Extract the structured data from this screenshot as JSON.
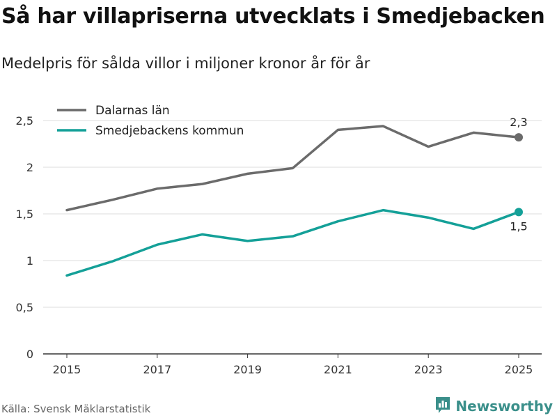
{
  "title": "Så har villapriserna utvecklats i Smedjebacken",
  "subtitle": "Medelpris för sålda villor i miljoner kronor år för år",
  "source": "Källa: Svensk Mäklarstatistik",
  "brand": {
    "name": "Newsworthy",
    "icon": "bar-chart-logo-icon",
    "color": "#3a8f8a"
  },
  "chart_data": {
    "type": "line",
    "title": "Så har villapriserna utvecklats i Smedjebacken",
    "subtitle": "Medelpris för sålda villor i miljoner kronor år för år",
    "xlabel": "",
    "ylabel": "",
    "x": [
      2015,
      2016,
      2017,
      2018,
      2019,
      2020,
      2021,
      2022,
      2023,
      2024,
      2025
    ],
    "xticks": [
      2015,
      2017,
      2019,
      2021,
      2023,
      2025
    ],
    "ylim": [
      0,
      2.5
    ],
    "yticks": [
      0,
      0.5,
      1,
      1.5,
      2,
      2.5
    ],
    "ytick_labels": [
      "0",
      "0,5",
      "1",
      "1,5",
      "2",
      "2,5"
    ],
    "grid": true,
    "legend_position": "top-left",
    "series": [
      {
        "name": "Dalarnas län",
        "color": "#6b6b6b",
        "values": [
          1.54,
          1.65,
          1.77,
          1.82,
          1.93,
          1.99,
          2.4,
          2.44,
          2.22,
          2.37,
          2.32
        ],
        "end_label": "2,3"
      },
      {
        "name": "Smedjebackens kommun",
        "color": "#14a098",
        "values": [
          0.84,
          0.99,
          1.17,
          1.28,
          1.21,
          1.26,
          1.42,
          1.54,
          1.46,
          1.34,
          1.52
        ],
        "end_label": "1,5"
      }
    ]
  }
}
